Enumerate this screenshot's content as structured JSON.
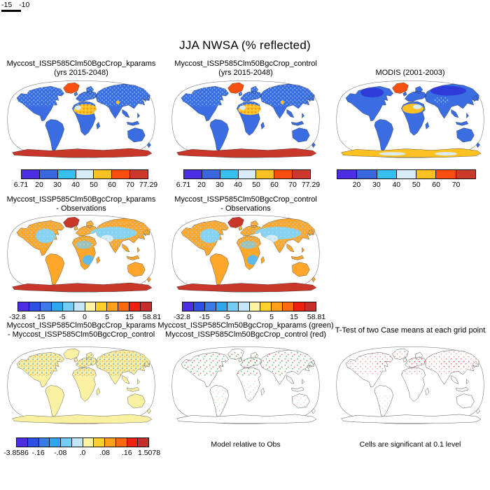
{
  "title": "JJA NWSA (% reflected)",
  "corner_fragment": {
    "label_a": "-15",
    "label_b": "-10"
  },
  "palettes": {
    "p7": [
      "#4b2ee3",
      "#3a67de",
      "#36c0f0",
      "#d8ecf7",
      "#ffc121",
      "#f94d10",
      "#ca392b"
    ],
    "p12": [
      "#4b2ee3",
      "#2e4fe4",
      "#3c79e9",
      "#2fa5f0",
      "#74ccf4",
      "#c3e6f8",
      "#fdf3a3",
      "#ffd02c",
      "#ffa01c",
      "#fb6a10",
      "#ee2111",
      "#c43029"
    ]
  },
  "colors": {
    "land_mean": "#3a6de2",
    "land_diff": "#ffa62b",
    "land_change": "#f9f0a2",
    "hot_red": "#c9372b",
    "greenland_hot": "#f8500f",
    "dot_green": "#18a018",
    "dot_red": "#ee2222"
  },
  "chart_data": [
    {
      "type": "map-heatmap",
      "title_line1": "Myccost_ISSP585Clm50BgcCrop_kparams",
      "title_line2": "(yrs 2015-2048)",
      "colorbar_labels": [
        "6.71",
        "20",
        "30",
        "40",
        "50",
        "60",
        "70",
        "77.29"
      ],
      "ticks": [
        {
          "label": "6.71",
          "pos": 0
        },
        {
          "label": "20",
          "pos": 0.1429
        },
        {
          "label": "30",
          "pos": 0.2857
        },
        {
          "label": "40",
          "pos": 0.4286
        },
        {
          "label": "50",
          "pos": 0.5714
        },
        {
          "label": "60",
          "pos": 0.7143
        },
        {
          "label": "70",
          "pos": 0.8571
        },
        {
          "label": "77.29",
          "pos": 1
        }
      ]
    },
    {
      "type": "map-heatmap",
      "title_line1": "Myccost_ISSP585Clm50BgcCrop_control",
      "title_line2": "(yrs 2015-2048)",
      "colorbar_labels": [
        "6.71",
        "20",
        "30",
        "40",
        "50",
        "60",
        "70",
        "77.29"
      ],
      "ticks": [
        {
          "label": "6.71",
          "pos": 0
        },
        {
          "label": "20",
          "pos": 0.1429
        },
        {
          "label": "30",
          "pos": 0.2857
        },
        {
          "label": "40",
          "pos": 0.4286
        },
        {
          "label": "50",
          "pos": 0.5714
        },
        {
          "label": "60",
          "pos": 0.7143
        },
        {
          "label": "70",
          "pos": 0.8571
        },
        {
          "label": "77.29",
          "pos": 1
        }
      ]
    },
    {
      "type": "map-heatmap",
      "title_line1": "",
      "title_line2": "MODIS (2001-2003)",
      "colorbar_labels": [
        "20",
        "30",
        "40",
        "50",
        "60",
        "70"
      ],
      "ticks": [
        {
          "label": "20",
          "pos": 0.1429
        },
        {
          "label": "30",
          "pos": 0.2857
        },
        {
          "label": "40",
          "pos": 0.4286
        },
        {
          "label": "50",
          "pos": 0.5714
        },
        {
          "label": "60",
          "pos": 0.7143
        },
        {
          "label": "70",
          "pos": 0.8571
        }
      ]
    },
    {
      "type": "map-heatmap-difference",
      "title_line1": "Myccost_ISSP585Clm50BgcCrop_kparams",
      "title_line2": "- Observations",
      "colorbar_labels": [
        "-32.8",
        "-15",
        "-5",
        "0",
        "5",
        "15",
        "58.81"
      ],
      "ticks": [
        {
          "label": "-32.8",
          "pos": 0
        },
        {
          "label": "-15",
          "pos": 0.1667
        },
        {
          "label": "-5",
          "pos": 0.3333
        },
        {
          "label": "0",
          "pos": 0.5
        },
        {
          "label": "5",
          "pos": 0.6667
        },
        {
          "label": "15",
          "pos": 0.8333
        },
        {
          "label": "58.81",
          "pos": 1
        }
      ]
    },
    {
      "type": "map-heatmap-difference",
      "title_line1": "Myccost_ISSP585Clm50BgcCrop_control",
      "title_line2": "- Observations",
      "colorbar_labels": [
        "-32.8",
        "-15",
        "-5",
        "0",
        "5",
        "15",
        "58.81"
      ],
      "ticks": [
        {
          "label": "-32.8",
          "pos": 0
        },
        {
          "label": "-15",
          "pos": 0.1667
        },
        {
          "label": "-5",
          "pos": 0.3333
        },
        {
          "label": "0",
          "pos": 0.5
        },
        {
          "label": "5",
          "pos": 0.6667
        },
        {
          "label": "15",
          "pos": 0.8333
        },
        {
          "label": "58.81",
          "pos": 1
        }
      ]
    },
    {
      "type": "map-heatmap-difference",
      "title_line1": "Myccost_ISSP585Clm50BgcCrop_kparams",
      "title_line2": "- Myccost_ISSP585Clm50BgcCrop_control",
      "colorbar_labels": [
        "-3.8586",
        "-.16",
        "-.08",
        ".0",
        ".08",
        ".16",
        "1.5078"
      ],
      "ticks": [
        {
          "label": "-3.8586",
          "pos": 0
        },
        {
          "label": "-.16",
          "pos": 0.1667
        },
        {
          "label": "-.08",
          "pos": 0.3333
        },
        {
          "label": ".0",
          "pos": 0.5
        },
        {
          "label": ".08",
          "pos": 0.6667
        },
        {
          "label": ".16",
          "pos": 0.8333
        },
        {
          "label": "1.5078",
          "pos": 1
        }
      ]
    },
    {
      "type": "map-dots",
      "title_line1": "Myccost_ISSP585Clm50BgcCrop_kparams (green)",
      "title_line2": "Myccost_ISSP585Clm50BgcCrop_control (red)",
      "caption": "Model relative to Obs",
      "dot_colors": [
        "green",
        "red"
      ]
    },
    {
      "type": "map-dots",
      "title_line1": "T-Test of two Case means at each grid point",
      "title_line2": "",
      "caption": "Cells are significant at 0.1 level",
      "dot_colors": [
        "red"
      ]
    }
  ]
}
